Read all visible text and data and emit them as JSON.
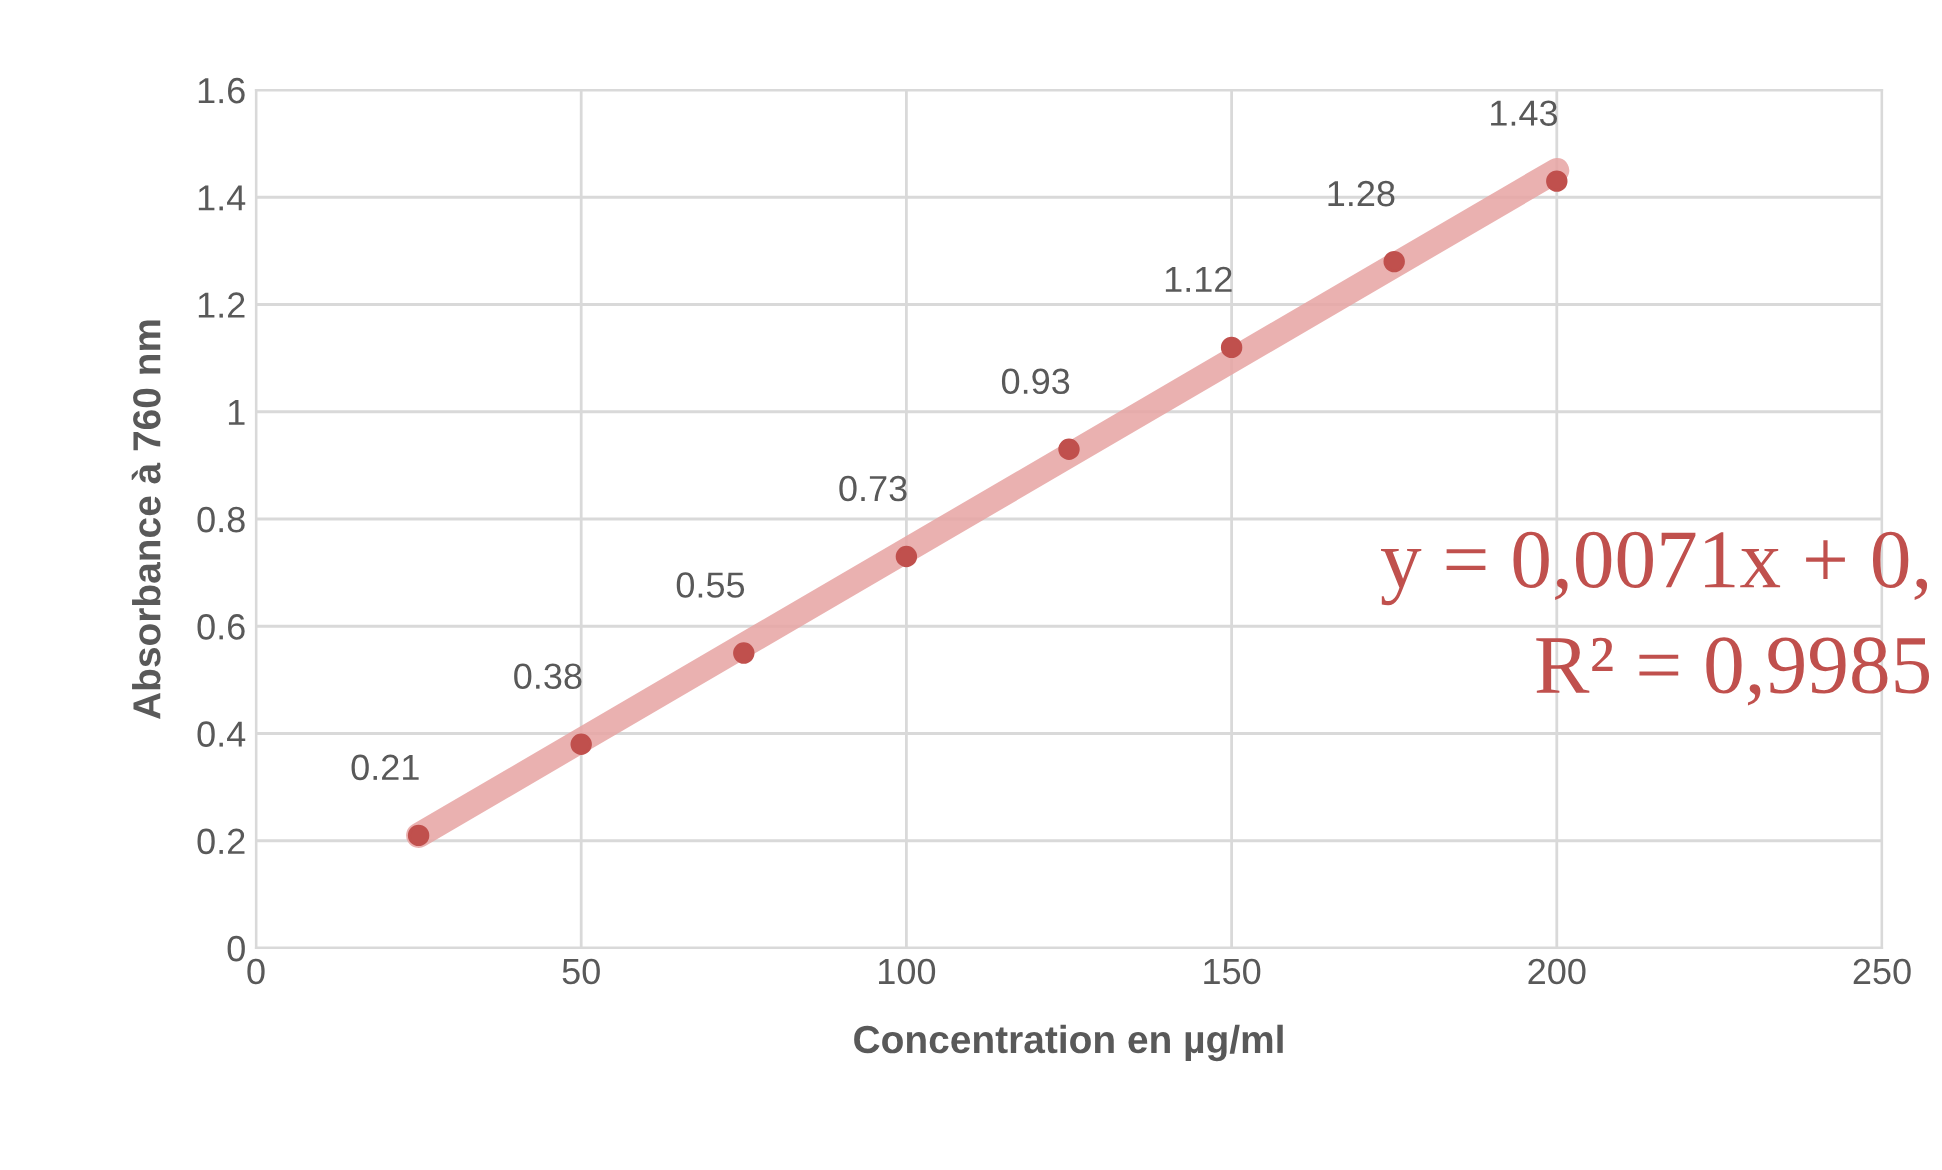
{
  "chart_data": {
    "type": "scatter",
    "xlabel": "Concentration en µg/ml",
    "ylabel": "Absorbance à 760 nm",
    "xlim": [
      0,
      250
    ],
    "xticks": [
      0,
      50,
      100,
      150,
      200,
      250
    ],
    "ylim": [
      0,
      1.6
    ],
    "yticks": [
      0,
      0.2,
      0.4,
      0.6,
      0.8,
      1,
      1.2,
      1.4,
      1.6
    ],
    "grid": true,
    "marker": "circle",
    "series": [
      {
        "type": "line",
        "color": "#e6a3a2",
        "x": [
          25,
          200
        ],
        "values": [
          0.21,
          1.45
        ],
        "line_style": "solid",
        "marker": "none"
      },
      {
        "color": "#c0504d",
        "x": [
          25,
          50,
          75,
          100,
          125,
          150,
          175,
          200
        ],
        "values": [
          0.21,
          0.38,
          0.55,
          0.73,
          0.93,
          1.12,
          1.28,
          1.43
        ],
        "value_labels": [
          "0.21",
          "0.38",
          "0.55",
          "0.73",
          "0.93",
          "1.12",
          "1.28",
          "1.43"
        ]
      }
    ],
    "annotations": [
      "y = 0,0071x + 0,",
      "R² = 0,9985"
    ]
  }
}
